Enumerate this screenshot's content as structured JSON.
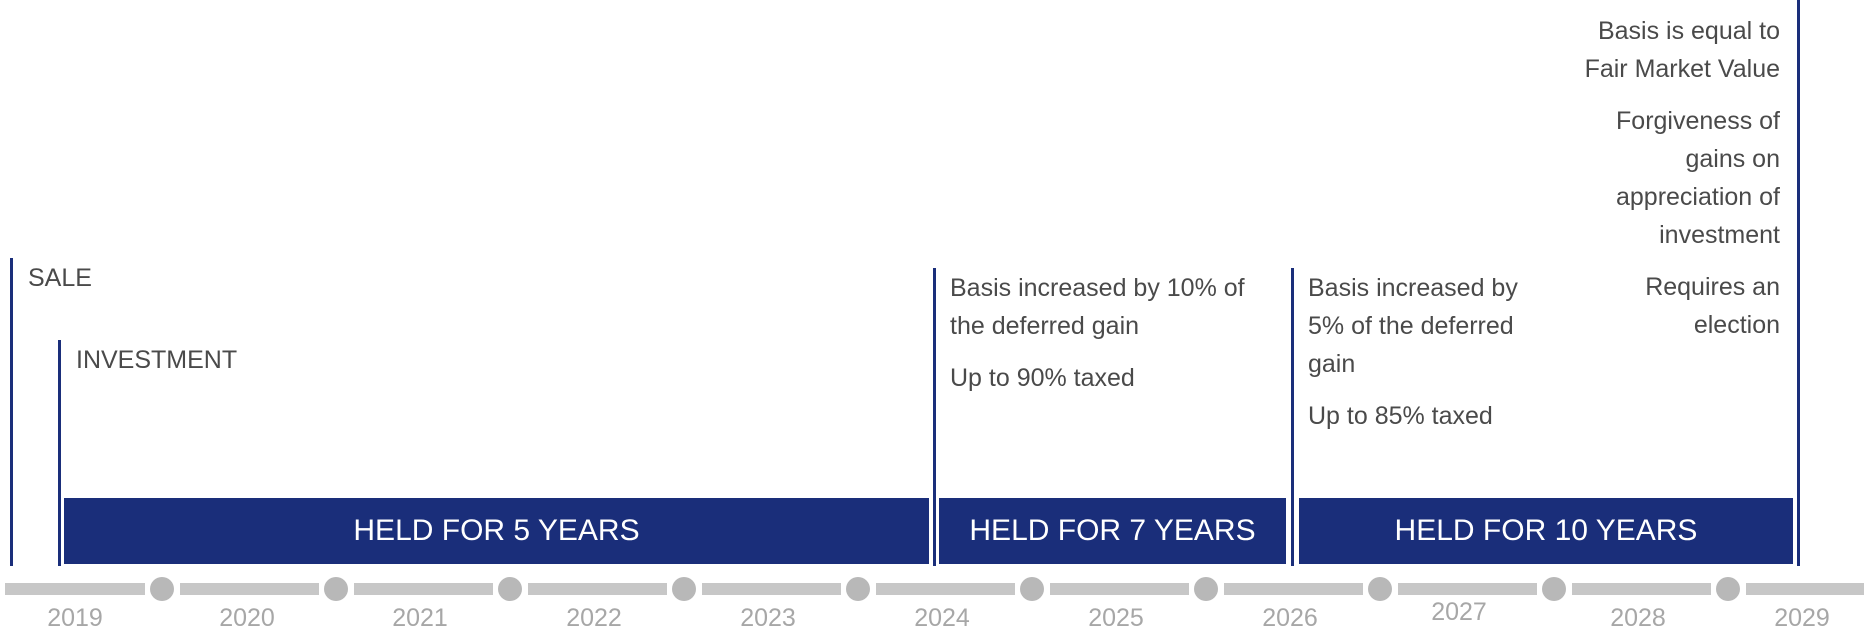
{
  "events": {
    "sale": "SALE",
    "investment": "INVESTMENT"
  },
  "milestones": {
    "five_year": [
      "Basis increased by 10% of the deferred gain",
      "Up to 90% taxed"
    ],
    "seven_year": [
      "Basis increased by 5% of the deferred gain",
      "Up to 85% taxed"
    ],
    "ten_year": [
      "Basis is equal to Fair Market Value",
      "Forgiveness of gains on appreciation of investment",
      "Requires an election"
    ]
  },
  "bands": [
    "HELD FOR 5 YEARS",
    "HELD FOR 7 YEARS",
    "HELD FOR 10 YEARS"
  ],
  "years": [
    "2019",
    "2020",
    "2021",
    "2022",
    "2023",
    "2024",
    "2025",
    "2026",
    "2027",
    "2028",
    "2029"
  ],
  "colors": {
    "navy": "#1a2e7a",
    "text": "#4a4a4a",
    "track": "#c7c7c7",
    "year": "#a7a7a7"
  }
}
